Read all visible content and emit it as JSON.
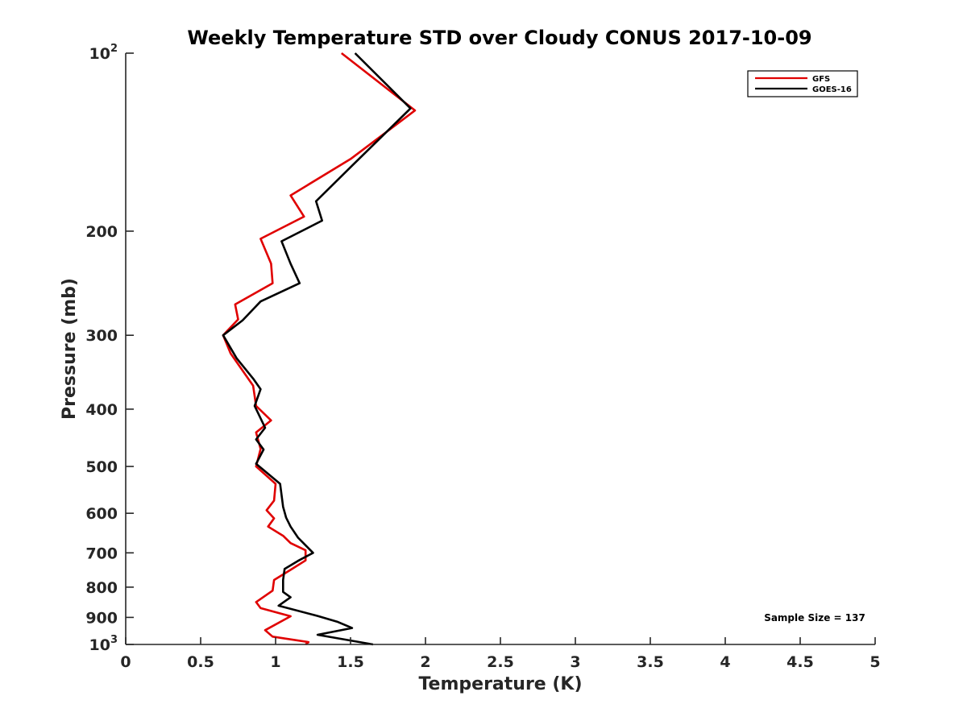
{
  "chart_data": {
    "type": "line",
    "title": "Weekly Temperature STD over Cloudy CONUS 2017-10-09",
    "xlabel": "Temperature (K)",
    "ylabel": "Pressure (mb)",
    "xlim": [
      0,
      5
    ],
    "ylim": [
      100,
      1000
    ],
    "yscale": "log",
    "y_reversed": true,
    "xticks": [
      {
        "value": 0,
        "label": "0"
      },
      {
        "value": 0.5,
        "label": "0.5"
      },
      {
        "value": 1,
        "label": "1"
      },
      {
        "value": 1.5,
        "label": "1.5"
      },
      {
        "value": 2,
        "label": "2"
      },
      {
        "value": 2.5,
        "label": "2.5"
      },
      {
        "value": 3,
        "label": "3"
      },
      {
        "value": 3.5,
        "label": "3.5"
      },
      {
        "value": 4,
        "label": "4"
      },
      {
        "value": 4.5,
        "label": "4.5"
      },
      {
        "value": 5,
        "label": "5"
      }
    ],
    "yticks": [
      {
        "value": 100,
        "label": "10",
        "exp": "2"
      },
      {
        "value": 200,
        "label": "200"
      },
      {
        "value": 300,
        "label": "300"
      },
      {
        "value": 400,
        "label": "400"
      },
      {
        "value": 500,
        "label": "500"
      },
      {
        "value": 600,
        "label": "600"
      },
      {
        "value": 700,
        "label": "700"
      },
      {
        "value": 800,
        "label": "800"
      },
      {
        "value": 900,
        "label": "900"
      },
      {
        "value": 1000,
        "label": "10",
        "exp": "3"
      }
    ],
    "legend_position": "top-right",
    "annotation": "Sample Size = 137",
    "series": [
      {
        "name": "GFS",
        "color": "#e00000",
        "points": [
          [
            1.44,
            100
          ],
          [
            1.93,
            125
          ],
          [
            1.5,
            151
          ],
          [
            1.1,
            174
          ],
          [
            1.19,
            189
          ],
          [
            0.9,
            206
          ],
          [
            0.97,
            227
          ],
          [
            0.98,
            245
          ],
          [
            0.73,
            266
          ],
          [
            0.75,
            282
          ],
          [
            0.65,
            300
          ],
          [
            0.7,
            322
          ],
          [
            0.85,
            365
          ],
          [
            0.87,
            395
          ],
          [
            0.97,
            418
          ],
          [
            0.87,
            438
          ],
          [
            0.9,
            467
          ],
          [
            0.87,
            500
          ],
          [
            1.0,
            535
          ],
          [
            0.99,
            571
          ],
          [
            0.94,
            593
          ],
          [
            0.99,
            612
          ],
          [
            0.95,
            632
          ],
          [
            1.05,
            655
          ],
          [
            1.1,
            674
          ],
          [
            1.2,
            693
          ],
          [
            1.2,
            721
          ],
          [
            1.1,
            748
          ],
          [
            0.99,
            778
          ],
          [
            0.98,
            811
          ],
          [
            0.87,
            848
          ],
          [
            0.9,
            868
          ],
          [
            1.1,
            896
          ],
          [
            0.93,
            946
          ],
          [
            0.98,
            970
          ],
          [
            1.22,
            991
          ],
          [
            1.2,
            1000
          ]
        ]
      },
      {
        "name": "GOES-16",
        "color": "#000000",
        "points": [
          [
            1.53,
            100
          ],
          [
            1.9,
            124
          ],
          [
            1.51,
            155
          ],
          [
            1.27,
            178
          ],
          [
            1.31,
            192
          ],
          [
            1.04,
            208
          ],
          [
            1.1,
            227
          ],
          [
            1.16,
            245
          ],
          [
            0.9,
            263
          ],
          [
            0.78,
            283
          ],
          [
            0.65,
            300
          ],
          [
            0.74,
            328
          ],
          [
            0.85,
            355
          ],
          [
            0.9,
            370
          ],
          [
            0.86,
            395
          ],
          [
            0.93,
            430
          ],
          [
            0.87,
            450
          ],
          [
            0.92,
            468
          ],
          [
            0.87,
            495
          ],
          [
            1.03,
            535
          ],
          [
            1.05,
            585
          ],
          [
            1.07,
            610
          ],
          [
            1.1,
            632
          ],
          [
            1.15,
            660
          ],
          [
            1.25,
            700
          ],
          [
            1.15,
            722
          ],
          [
            1.06,
            745
          ],
          [
            1.05,
            778
          ],
          [
            1.05,
            815
          ],
          [
            1.1,
            832
          ],
          [
            1.02,
            860
          ],
          [
            1.28,
            895
          ],
          [
            1.41,
            915
          ],
          [
            1.51,
            938
          ],
          [
            1.28,
            963
          ],
          [
            1.65,
            1000
          ]
        ]
      }
    ]
  }
}
